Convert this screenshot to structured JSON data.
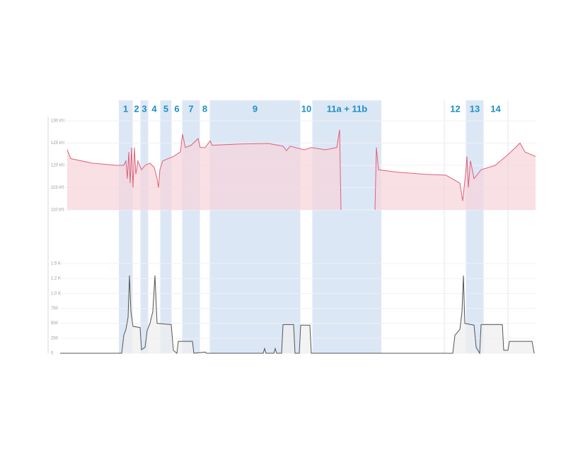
{
  "chart_data": [
    {
      "type": "area",
      "color": "#e0607a",
      "fill": "#f7d3da",
      "xlim": [
        0,
        672
      ],
      "ylim": [
        110,
        130
      ],
      "yticks": [
        {
          "value": 110,
          "label": "110 kN"
        },
        {
          "value": 115,
          "label": "115 kN"
        },
        {
          "value": 120,
          "label": "120 kN"
        },
        {
          "value": 125,
          "label": "125 kN"
        },
        {
          "value": 130,
          "label": "130 kN"
        }
      ],
      "grid": true,
      "regions": [
        {
          "label": "1",
          "start": 83,
          "end": 102,
          "shaded": true
        },
        {
          "label": "2",
          "start": 102,
          "end": 114,
          "shaded": false
        },
        {
          "label": "3",
          "start": 114,
          "end": 124,
          "shaded": true
        },
        {
          "label": "4",
          "start": 124,
          "end": 142,
          "shaded": false
        },
        {
          "label": "5",
          "start": 142,
          "end": 157,
          "shaded": true
        },
        {
          "label": "6",
          "start": 157,
          "end": 173,
          "shaded": false
        },
        {
          "label": "7",
          "start": 173,
          "end": 197,
          "shaded": true
        },
        {
          "label": "8",
          "start": 197,
          "end": 212,
          "shaded": false
        },
        {
          "label": "9",
          "start": 212,
          "end": 339,
          "shaded": true
        },
        {
          "label": "10",
          "start": 339,
          "end": 357,
          "shaded": false
        },
        {
          "label": "11a + 11b",
          "start": 357,
          "end": 454,
          "shaded": true
        },
        {
          "label": "12",
          "start": 543,
          "end": 574,
          "shaded": false
        },
        {
          "label": "13",
          "start": 574,
          "end": 598,
          "shaded": true
        },
        {
          "label": "14",
          "start": 598,
          "end": 633,
          "shaded": false
        }
      ],
      "x": [
        10,
        15,
        45,
        80,
        90,
        93,
        95,
        97,
        99,
        101,
        103,
        105,
        107,
        110,
        115,
        120,
        127,
        133,
        137,
        139,
        141,
        145,
        160,
        170,
        173,
        177,
        185,
        195,
        198,
        205,
        212,
        215,
        255,
        295,
        315,
        320,
        325,
        345,
        355,
        375,
        391,
        395,
        397,
        420,
        445,
        447,
        450,
        475,
        515,
        545,
        565,
        569,
        573,
        575,
        577,
        580,
        585,
        595,
        615,
        630,
        637,
        650,
        657,
        672
      ],
      "values": [
        123.5,
        121.5,
        120.5,
        120,
        120,
        121,
        117,
        123,
        116,
        124,
        115,
        124,
        118,
        121,
        119,
        120,
        120.5,
        119.5,
        117,
        115,
        119,
        121,
        122,
        123,
        127,
        124,
        124.5,
        126,
        124,
        124,
        125.5,
        124.5,
        124.8,
        124.9,
        124.3,
        123.3,
        124.3,
        123.5,
        124,
        123.5,
        124,
        128,
        110,
        null,
        110,
        124,
        119,
        118.5,
        118,
        117.8,
        116,
        112,
        118,
        122,
        115,
        121,
        117,
        119,
        120,
        122,
        123,
        125,
        123,
        122
      ]
    },
    {
      "type": "area",
      "color": "#555555",
      "fill": "#eeeeee",
      "xlim": [
        0,
        672
      ],
      "ylim": [
        0,
        1500
      ],
      "yticks": [
        0,
        250,
        500,
        750,
        {
          "value": 1000,
          "label": "1.0 K"
        },
        {
          "value": 1250,
          "label": "1.2 K"
        },
        {
          "value": 1500,
          "label": "1.5 K"
        }
      ],
      "grid": true,
      "x": [
        0,
        87,
        90,
        93,
        96,
        98,
        100,
        103,
        113,
        115,
        120,
        123,
        127,
        131,
        134,
        137,
        157,
        160,
        165,
        167,
        187,
        189,
        205,
        207,
        287,
        289,
        291,
        302,
        304,
        306,
        313,
        315,
        330,
        332,
        338,
        340,
        353,
        355,
        555,
        558,
        565,
        568,
        570,
        572,
        585,
        588,
        593,
        595,
        625,
        627,
        633,
        635,
        667,
        670
      ],
      "values": [
        0,
        0,
        300,
        400,
        600,
        1300,
        700,
        450,
        430,
        60,
        100,
        380,
        500,
        700,
        1300,
        500,
        480,
        50,
        0,
        200,
        200,
        0,
        20,
        0,
        0,
        80,
        0,
        0,
        80,
        0,
        0,
        480,
        480,
        0,
        0,
        470,
        470,
        0,
        0,
        300,
        400,
        700,
        1300,
        500,
        470,
        100,
        0,
        480,
        480,
        50,
        50,
        200,
        200,
        0
      ]
    }
  ]
}
